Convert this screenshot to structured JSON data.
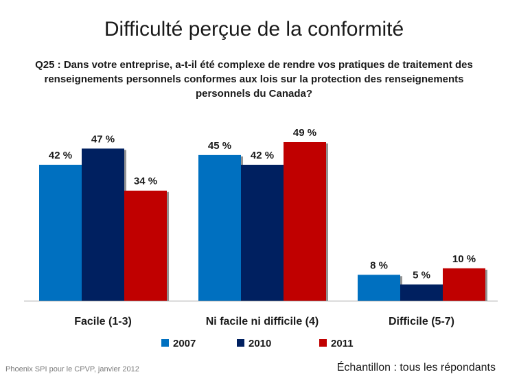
{
  "title": "Difficulté perçue de la conformité",
  "question": "Q25 : Dans votre entreprise, a-t-il été complexe de rendre vos pratiques de traitement des renseignements personnels conformes aux lois sur la protection des renseignements personnels du Canada?",
  "footer_left": "Phoenix SPI pour le CPVP, janvier 2012",
  "footer_right": "Échantillon : tous les répondants",
  "chart_data": {
    "type": "bar",
    "categories": [
      "Facile (1-3)",
      "Ni facile ni difficile (4)",
      "Difficile (5-7)"
    ],
    "series": [
      {
        "name": "2007",
        "color": "#0070c0",
        "values": [
          42,
          45,
          8
        ],
        "labels": [
          "42 %",
          "45 %",
          "8 %"
        ]
      },
      {
        "name": "2010",
        "color": "#002060",
        "values": [
          47,
          42,
          5
        ],
        "labels": [
          "47 %",
          "42 %",
          "5 %"
        ]
      },
      {
        "name": "2011",
        "color": "#c00000",
        "values": [
          34,
          49,
          10
        ],
        "labels": [
          "34 %",
          "49 %",
          "10 %"
        ]
      }
    ],
    "ylim": [
      0,
      49
    ],
    "legend_position": "bottom",
    "grid": false
  }
}
